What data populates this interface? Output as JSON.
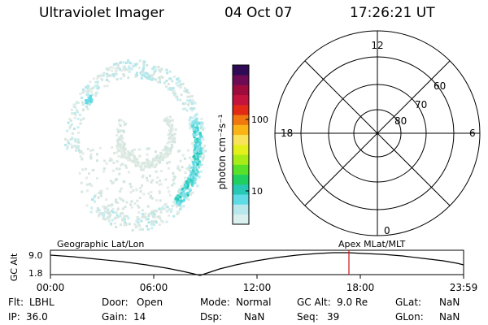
{
  "header": {
    "instrument": "Ultraviolet Imager",
    "date": "04 Oct 07",
    "time": "17:26:21 UT"
  },
  "colorbar": {
    "unit_label": "photon cm⁻²s⁻¹",
    "tick_100": "100",
    "tick_10": "10",
    "colors": [
      "#d9f0ef",
      "#b8e8ec",
      "#5fdbe6",
      "#27c9b4",
      "#1fd061",
      "#59e12a",
      "#a7ec17",
      "#e4f01b",
      "#f9e35a",
      "#fbb416",
      "#f0780f",
      "#e22a17",
      "#c4133d",
      "#9e0c3e",
      "#6e0b55",
      "#2f0b55"
    ]
  },
  "polar": {
    "labels": {
      "top": "12",
      "bottom": "0",
      "left": "18",
      "right": "6"
    },
    "ring_labels": [
      "60",
      "70",
      "80"
    ]
  },
  "timeline": {
    "axis_label": "GC Alt",
    "y_max": "9.0",
    "y_min": "1.8",
    "left_title": "Geographic Lat/Lon",
    "right_title": "Apex MLat/MLT",
    "x_ticks": [
      "00:00",
      "06:00",
      "12:00",
      "18:00",
      "23:59"
    ],
    "current_marker_color": "#d01010"
  },
  "info": {
    "flt_label": "Flt:",
    "flt_value": "LBHL",
    "ip_label": "IP:",
    "ip_value": "36.0",
    "door_label": "Door:",
    "door_value": "Open",
    "gain_label": "Gain:",
    "gain_value": "14",
    "mode_label": "Mode:",
    "mode_value": "Normal",
    "dsp_label": "Dsp:",
    "dsp_value": "NaN",
    "gcalt_label": "GC Alt:",
    "gcalt_value": "9.0 Re",
    "seq_label": "Seq:",
    "seq_value": "39",
    "glat_label": "GLat:",
    "glat_value": "NaN",
    "glon_label": "GLon:",
    "glon_value": "NaN"
  }
}
